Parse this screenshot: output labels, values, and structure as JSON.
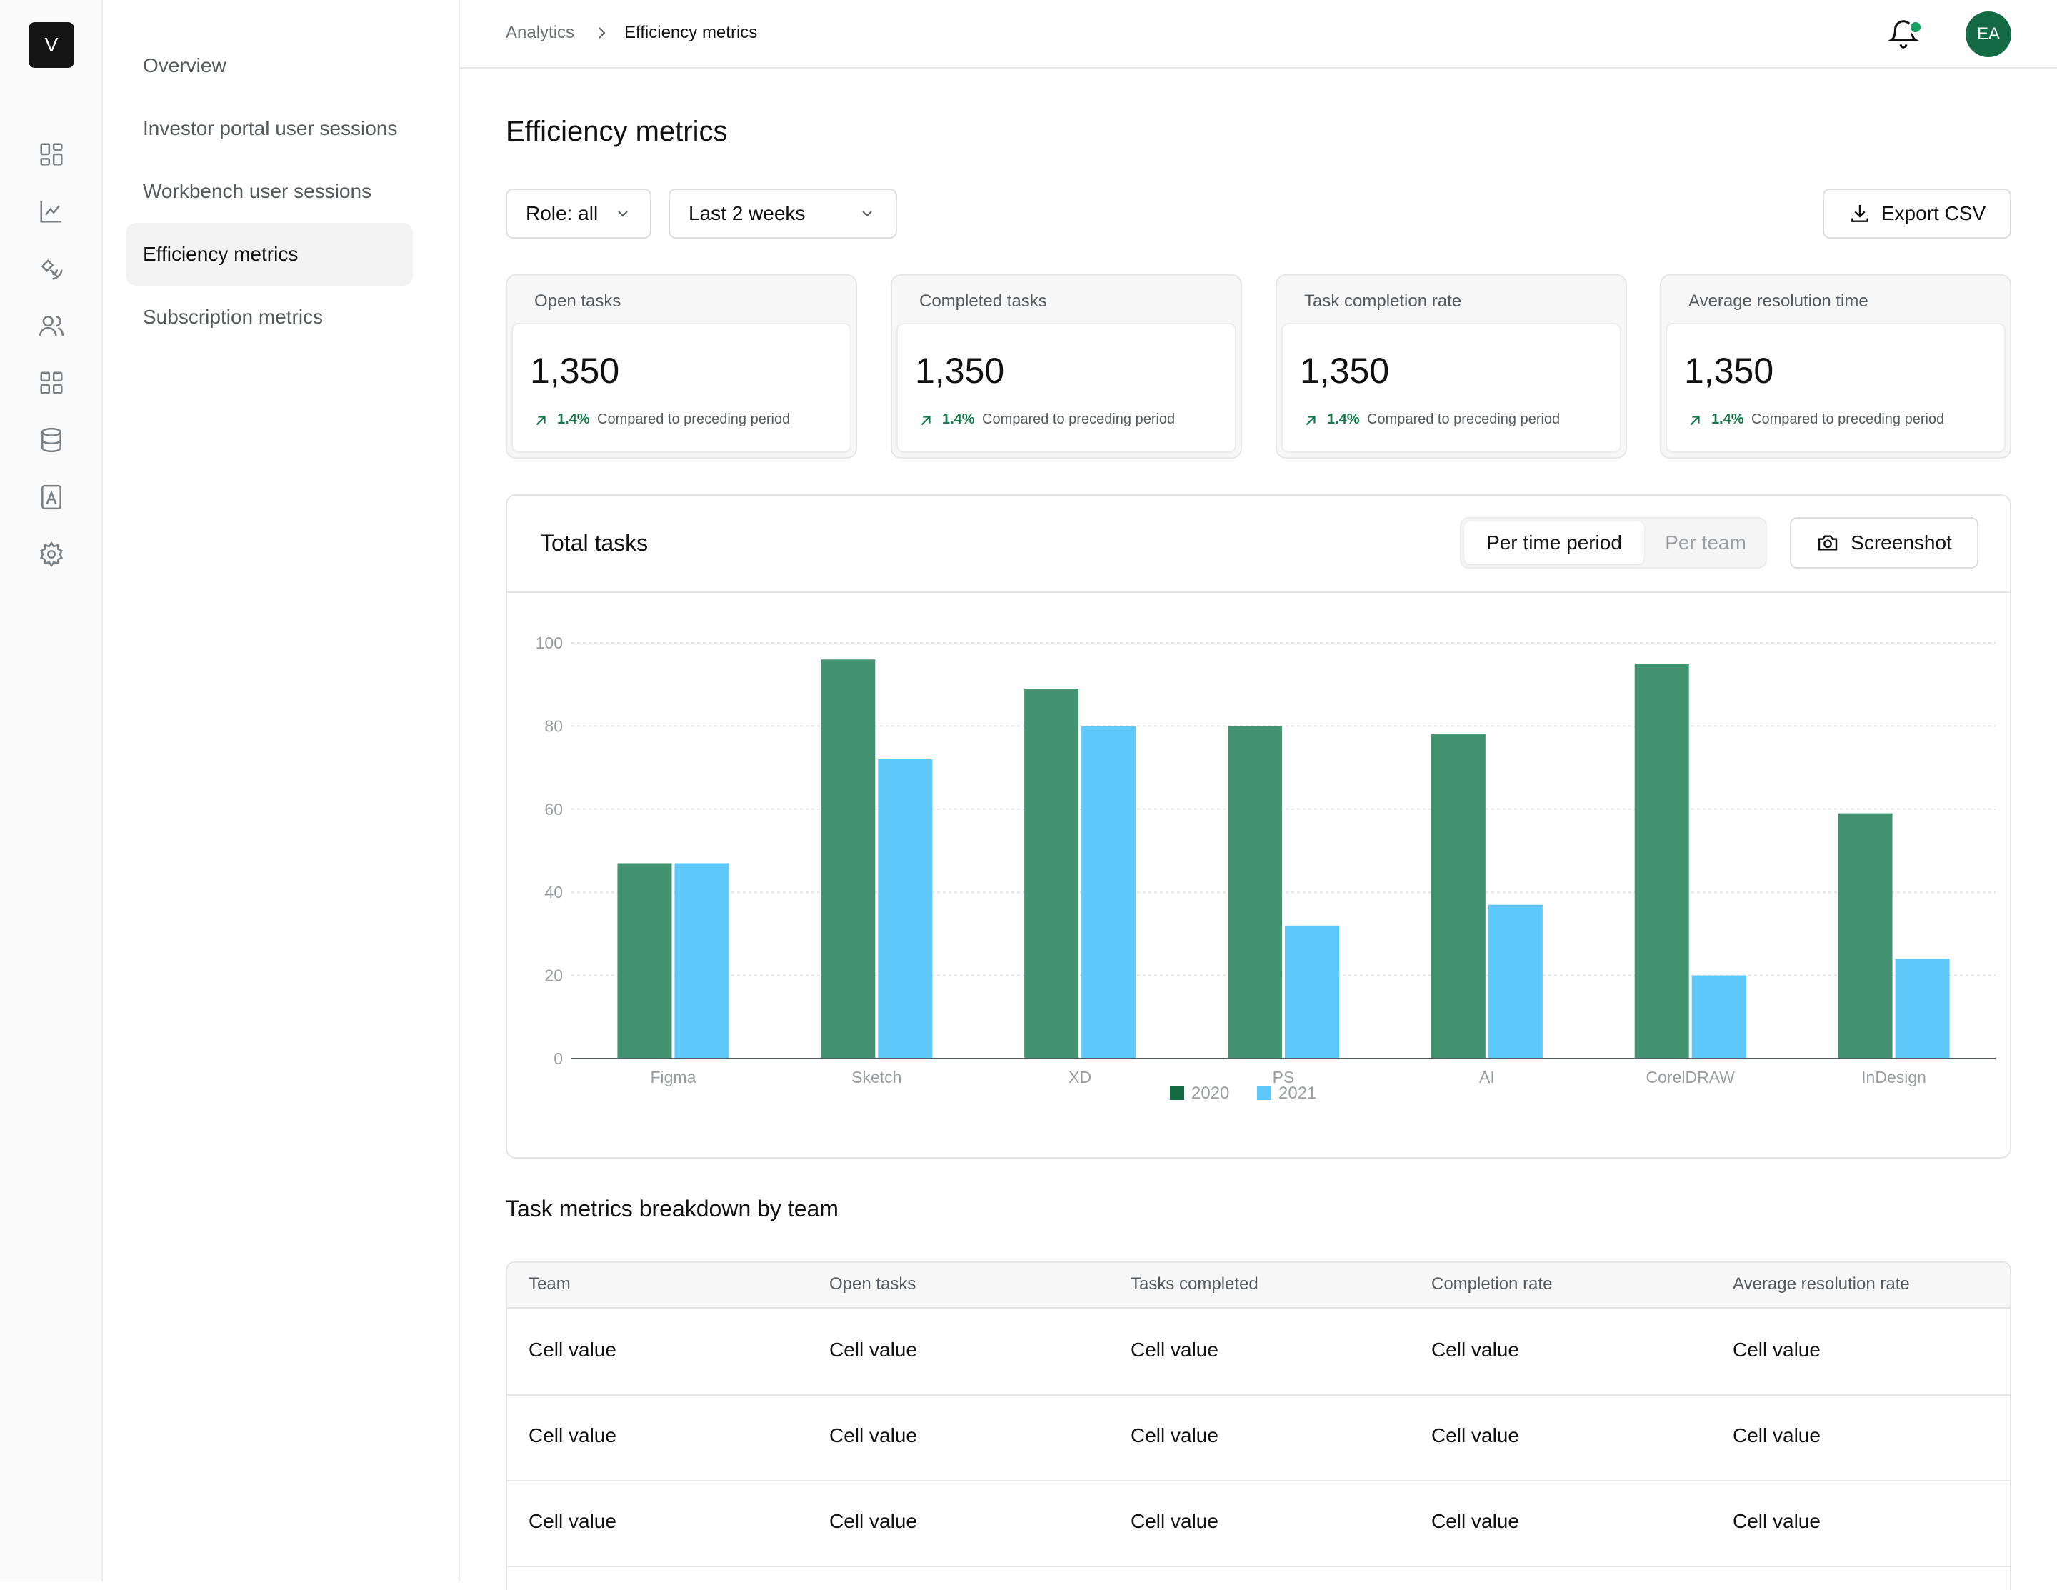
{
  "rail": {
    "logo": "V",
    "icons": [
      "grid-icon",
      "chart-line-icon",
      "satellite-icon",
      "users-icon",
      "apps-icon",
      "database-icon",
      "contact-book-icon",
      "gear-icon"
    ]
  },
  "subnav": {
    "items": [
      {
        "label": "Overview",
        "active": false
      },
      {
        "label": "Investor portal user sessions",
        "active": false
      },
      {
        "label": "Workbench user sessions",
        "active": false
      },
      {
        "label": "Efficiency metrics",
        "active": true
      },
      {
        "label": "Subscription metrics",
        "active": false
      }
    ]
  },
  "header": {
    "breadcrumb": [
      "Analytics",
      "Efficiency metrics"
    ],
    "avatar_initials": "EA"
  },
  "main": {
    "title": "Efficiency metrics",
    "filters": {
      "role": "Role: all",
      "period": "Last 2 weeks"
    },
    "export_label": "Export CSV"
  },
  "kpis": [
    {
      "label": "Open tasks",
      "value": "1,350",
      "delta": "1.4%",
      "note": "Compared to preceding period"
    },
    {
      "label": "Completed tasks",
      "value": "1,350",
      "delta": "1.4%",
      "note": "Compared to preceding period"
    },
    {
      "label": "Task completion rate",
      "value": "1,350",
      "delta": "1.4%",
      "note": "Compared to preceding period"
    },
    {
      "label": "Average resolution time",
      "value": "1,350",
      "delta": "1.4%",
      "note": "Compared to preceding period"
    }
  ],
  "chart_card": {
    "title": "Total tasks",
    "toggle": [
      "Per time period",
      "Per team"
    ],
    "screenshot_label": "Screenshot"
  },
  "chart_data": {
    "type": "bar",
    "categories": [
      "Figma",
      "Sketch",
      "XD",
      "PS",
      "AI",
      "CorelDRAW",
      "InDesign"
    ],
    "series": [
      {
        "name": "2020",
        "color": "#439370",
        "values": [
          47,
          96,
          89,
          80,
          78,
          95,
          59
        ]
      },
      {
        "name": "2021",
        "color": "#5ec8fa",
        "values": [
          47,
          72,
          80,
          32,
          37,
          20,
          24
        ]
      }
    ],
    "ylim": [
      0,
      100
    ],
    "yticks": [
      "0",
      "20",
      "40",
      "60",
      "80",
      "100"
    ],
    "grid": true,
    "legend": "bottom-center"
  },
  "table": {
    "title": "Task metrics breakdown by team",
    "columns": [
      "Team",
      "Open tasks",
      "Tasks completed",
      "Completion rate",
      "Average resolution rate"
    ],
    "rows": [
      [
        "Cell value",
        "Cell value",
        "Cell value",
        "Cell value",
        "Cell value"
      ],
      [
        "Cell value",
        "Cell value",
        "Cell value",
        "Cell value",
        "Cell value"
      ],
      [
        "Cell value",
        "Cell value",
        "Cell value",
        "Cell value",
        "Cell value"
      ]
    ]
  },
  "colors": {
    "accent": "#146b43",
    "positive": "#147a4a",
    "series_2020": "#439370",
    "series_2021": "#5ec8fa"
  }
}
